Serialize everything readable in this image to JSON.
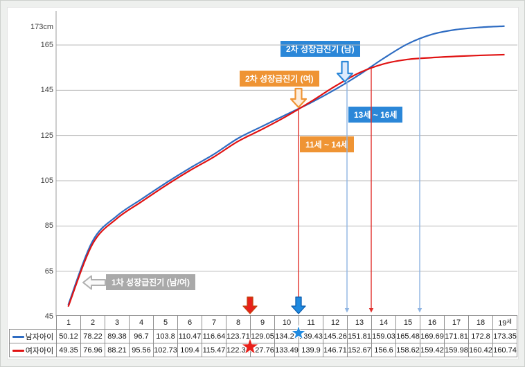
{
  "background": {
    "frame_color": "#eef0ee",
    "canvas_color": "#ffffff",
    "gridline_color": "#b8b8b8"
  },
  "chart_data": {
    "type": "line",
    "title": "",
    "x": [
      1,
      2,
      3,
      4,
      5,
      6,
      7,
      8,
      9,
      10,
      11,
      12,
      13,
      14,
      15,
      16,
      17,
      18,
      19
    ],
    "x_axis_unit_suffix": "세",
    "ylim": [
      45,
      173
    ],
    "yticks": [
      45,
      65,
      85,
      105,
      125,
      145,
      165,
      173
    ],
    "ytick_labels": [
      "45",
      "65",
      "85",
      "105",
      "125",
      "145",
      "165",
      "173cm"
    ],
    "grid": "horizontal",
    "legend_position": "table-left",
    "series": [
      {
        "name": "남자아이",
        "color": "#2e6cc2",
        "values": [
          50.12,
          78.22,
          89.38,
          96.7,
          103.8,
          110.47,
          116.64,
          123.71,
          129.05,
          134.27,
          139.43,
          145.26,
          151.81,
          159.03,
          165.48,
          169.69,
          171.81,
          172.8,
          173.35
        ]
      },
      {
        "name": "여자아이",
        "color": "#e01212",
        "values": [
          49.35,
          76.96,
          88.21,
          95.56,
          102.73,
          109.4,
          115.47,
          122.39,
          127.76,
          133.49,
          139.9,
          146.71,
          152.67,
          156.6,
          158.62,
          159.42,
          159.98,
          160.42,
          160.74
        ]
      }
    ]
  },
  "annotations": {
    "first_spurt": {
      "label": "1차 성장급진기 (남/여)",
      "color": "#a9a9a9"
    },
    "male_spurt": {
      "label": "2차 성장급진기 (남)",
      "color": "#2b87d8"
    },
    "female_spurt": {
      "label": "2차 성장급진기 (여)",
      "color": "#ef9434"
    },
    "male_range": {
      "label": "13세 ~ 16세",
      "color": "#2b87d8",
      "from_age": 13,
      "to_age": 16,
      "line_color": "#8fb4e2"
    },
    "female_range": {
      "label": "11세 ~ 14세",
      "color": "#ef9434",
      "from_age": 11,
      "to_age": 14,
      "line_color": "#e0302c"
    },
    "red_arrow_star": {
      "series": "여자아이",
      "between_ages": [
        8,
        9
      ],
      "color": "#e8201a"
    },
    "blue_arrow_star": {
      "series": "남자아이",
      "between_ages": [
        10,
        11
      ],
      "color": "#1f8ae0"
    }
  }
}
